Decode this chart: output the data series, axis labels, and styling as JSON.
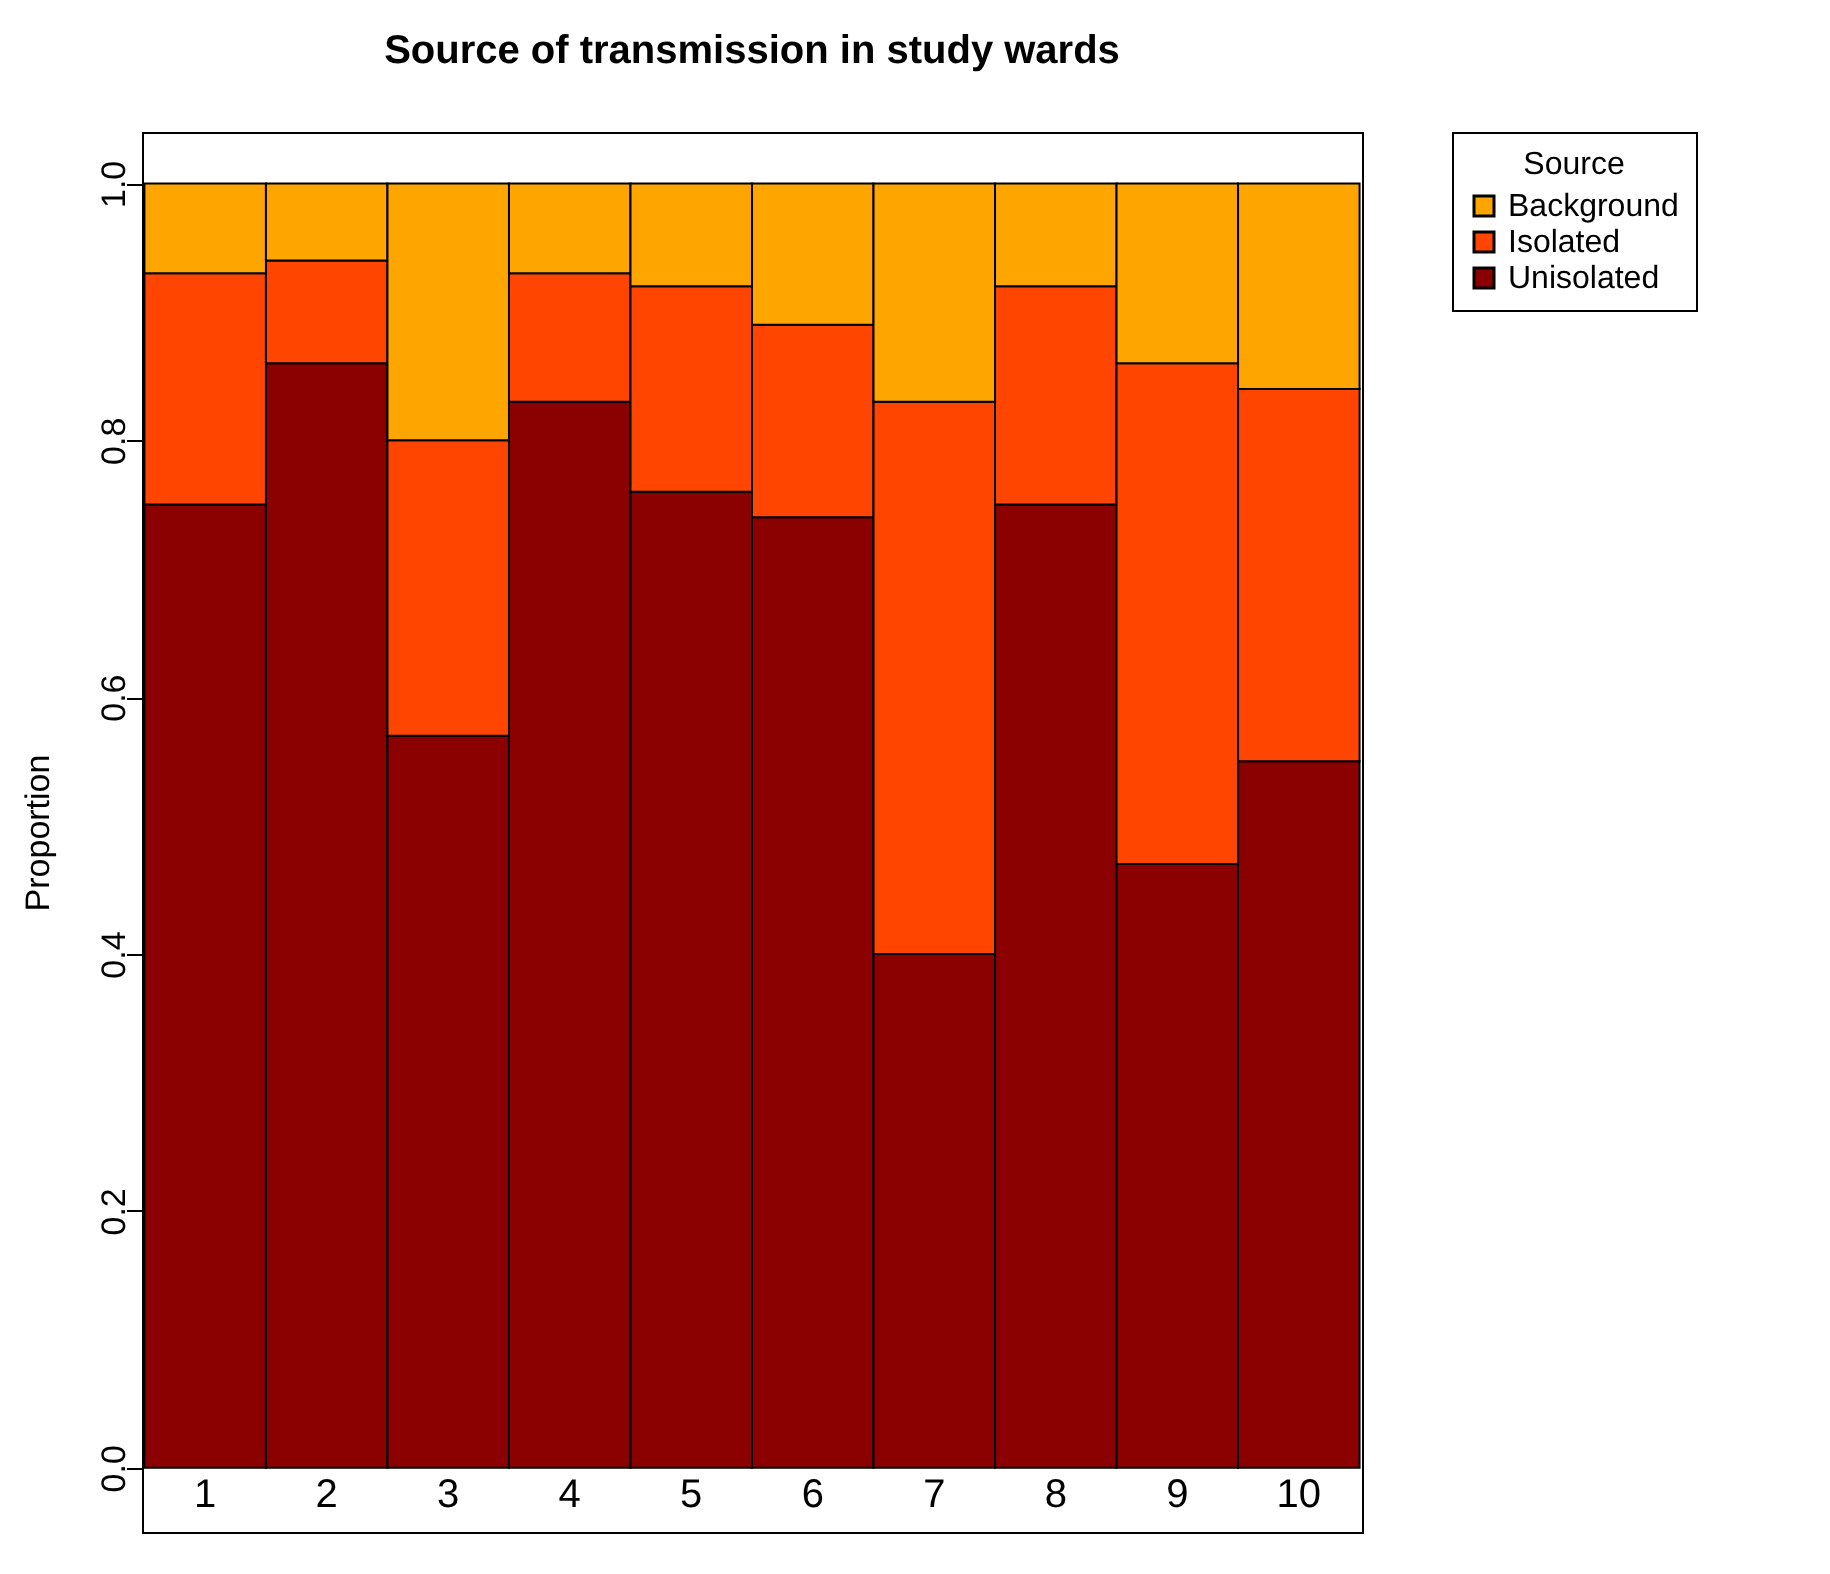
{
  "chart_data": {
    "type": "bar",
    "title": "Source of transmission in study wards",
    "ylabel": "Proportion",
    "legend_title": "Source",
    "categories": [
      "1",
      "2",
      "3",
      "4",
      "5",
      "6",
      "7",
      "8",
      "9",
      "10"
    ],
    "stacked": true,
    "series": [
      {
        "name": "Unisolated",
        "color": "#8b0000",
        "values": [
          0.75,
          0.86,
          0.57,
          0.83,
          0.76,
          0.74,
          0.4,
          0.75,
          0.47,
          0.55
        ]
      },
      {
        "name": "Isolated",
        "color": "#ff4500",
        "values": [
          0.18,
          0.08,
          0.23,
          0.1,
          0.16,
          0.15,
          0.43,
          0.17,
          0.39,
          0.29
        ]
      },
      {
        "name": "Background",
        "color": "#ffa500",
        "values": [
          0.07,
          0.06,
          0.2,
          0.07,
          0.08,
          0.11,
          0.17,
          0.08,
          0.14,
          0.16
        ]
      }
    ],
    "ylim": [
      -0.05,
      1.04
    ],
    "yticks": [
      {
        "value": 0,
        "label": "0.0"
      },
      0.2,
      0.4,
      0.6,
      0.8,
      {
        "value": 1,
        "label": "1.0"
      }
    ],
    "grid": false,
    "legend": "top right"
  }
}
